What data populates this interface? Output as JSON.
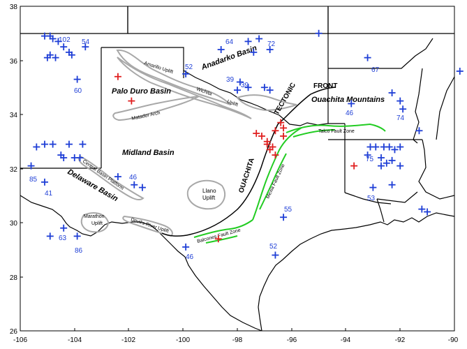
{
  "axes": {
    "x_ticks": [
      "-106",
      "-104",
      "-102",
      "-100",
      "-98",
      "-96",
      "-94",
      "-92",
      "-90"
    ],
    "y_ticks": [
      "38",
      "36",
      "34",
      "32",
      "30",
      "28",
      "26"
    ]
  },
  "labels": {
    "anadarko": "Anadarko Basin",
    "palo_duro": "Palo Duro Basin",
    "amarillo": "Amarillo Uplift",
    "wichita": "Wichita",
    "uplift": "Uplift",
    "tectonic": "TECTONIC",
    "matador": "Matador Arch",
    "midland": "Midland Basin",
    "central_basin": "Central Basin Platform",
    "delaware": "Delaware Basin",
    "marathon": "Marathon",
    "marathon_uplift": "Uplift",
    "llano": "Llano",
    "llano_uplift": "Uplift",
    "devils": "Devil's River Uplift",
    "ouachita": "OUACHITA",
    "balcones": "Balcones Fault Zone",
    "mexia": "Mexia Fault Zone",
    "talco": "Talco Fault Zone",
    "front": "FRONT",
    "ouachita_mountains": "Ouachita Mountains"
  },
  "station_numbers": [
    "102",
    "54",
    "64",
    "72",
    "52",
    "39",
    "39",
    "60",
    "67",
    "46",
    "74",
    "85",
    "41",
    "46",
    "75",
    "53",
    "55",
    "63",
    "86",
    "46",
    "52"
  ],
  "markers": {
    "blue_color": "#1f3fd6",
    "red_color": "#e01f1f",
    "blue": [
      [
        -105.1,
        36.9
      ],
      [
        -104.9,
        36.9
      ],
      [
        -104.8,
        36.8
      ],
      [
        -104.6,
        36.7
      ],
      [
        -104.4,
        36.5
      ],
      [
        -104.2,
        36.3
      ],
      [
        -103.6,
        36.5
      ],
      [
        -104.1,
        36.2
      ],
      [
        -104.9,
        36.2
      ],
      [
        -105.0,
        36.1
      ],
      [
        -104.7,
        36.1
      ],
      [
        -103.9,
        35.3
      ],
      [
        -105.4,
        32.8
      ],
      [
        -105.1,
        32.9
      ],
      [
        -104.8,
        32.9
      ],
      [
        -104.5,
        32.5
      ],
      [
        -104.2,
        32.9
      ],
      [
        -104.0,
        32.4
      ],
      [
        -103.7,
        32.9
      ],
      [
        -104.4,
        32.4
      ],
      [
        -105.6,
        32.1
      ],
      [
        -105.1,
        31.5
      ],
      [
        -103.8,
        32.4
      ],
      [
        -102.4,
        31.7
      ],
      [
        -101.8,
        31.4
      ],
      [
        -101.5,
        31.3
      ],
      [
        -104.4,
        29.8
      ],
      [
        -104.9,
        29.5
      ],
      [
        -103.9,
        29.5
      ],
      [
        -99.9,
        35.5
      ],
      [
        -97.6,
        36.7
      ],
      [
        -97.2,
        36.8
      ],
      [
        -98.6,
        36.4
      ],
      [
        -96.8,
        36.4
      ],
      [
        -97.4,
        36.3
      ],
      [
        -98.0,
        34.9
      ],
      [
        -97.9,
        35.2
      ],
      [
        -97.6,
        35.0
      ],
      [
        -97.0,
        35.0
      ],
      [
        -96.8,
        34.9
      ],
      [
        -95.0,
        37.0
      ],
      [
        -93.2,
        36.1
      ],
      [
        -93.8,
        34.4
      ],
      [
        -92.3,
        34.8
      ],
      [
        -92.0,
        34.5
      ],
      [
        -91.9,
        34.2
      ],
      [
        -91.3,
        33.4
      ],
      [
        -89.8,
        35.6
      ],
      [
        -93.2,
        32.5
      ],
      [
        -93.1,
        32.8
      ],
      [
        -92.9,
        32.8
      ],
      [
        -92.6,
        32.8
      ],
      [
        -92.4,
        32.8
      ],
      [
        -92.2,
        32.7
      ],
      [
        -92.0,
        32.8
      ],
      [
        -92.7,
        32.4
      ],
      [
        -92.5,
        32.2
      ],
      [
        -92.3,
        32.3
      ],
      [
        -92.7,
        32.1
      ],
      [
        -92.3,
        31.4
      ],
      [
        -93.0,
        31.3
      ],
      [
        -91.2,
        30.5
      ],
      [
        -91.0,
        30.4
      ],
      [
        -92.0,
        32.1
      ],
      [
        -96.3,
        30.2
      ],
      [
        -96.6,
        28.8
      ],
      [
        -99.9,
        29.1
      ]
    ],
    "red": [
      [
        -102.4,
        35.4
      ],
      [
        -101.9,
        34.5
      ],
      [
        -97.3,
        33.3
      ],
      [
        -97.1,
        33.2
      ],
      [
        -96.9,
        33.0
      ],
      [
        -96.9,
        32.9
      ],
      [
        -96.7,
        32.8
      ],
      [
        -96.8,
        32.7
      ],
      [
        -96.6,
        32.5
      ],
      [
        -96.6,
        33.4
      ],
      [
        -96.3,
        33.2
      ],
      [
        -96.3,
        33.5
      ],
      [
        -96.4,
        33.7
      ],
      [
        -93.7,
        32.1
      ],
      [
        -98.7,
        29.4
      ]
    ]
  }
}
